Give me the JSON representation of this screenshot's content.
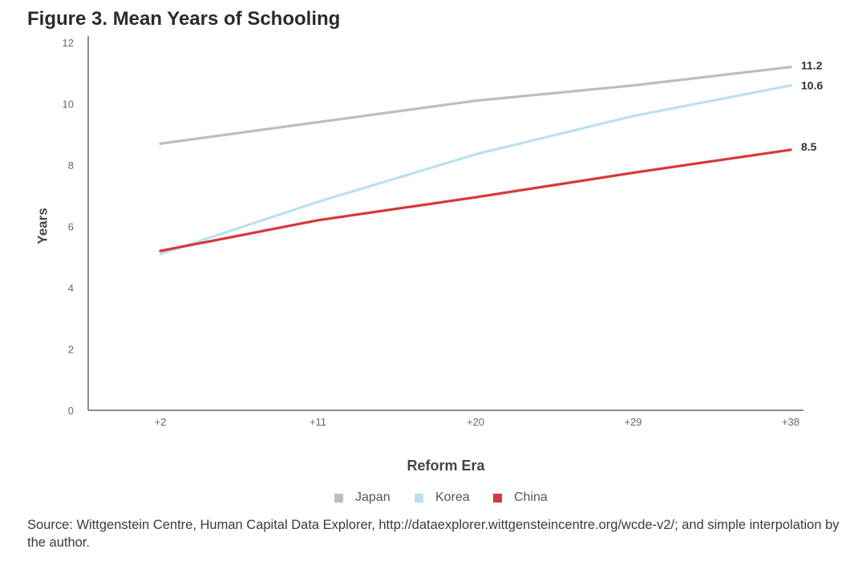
{
  "title": "Figure 3. Mean Years of Schooling",
  "source": "Source: Wittgenstein Centre, Human Capital Data Explorer, http://dataexplorer.wittgensteincentre.org/wcde-v2/; and simple interpolation by the author.",
  "colors": {
    "japan": "#bdbdbd",
    "korea": "#b9e1ee",
    "china": "#d7373b",
    "axis": "#444444",
    "tick_text": "#666666"
  },
  "chart_data": {
    "type": "line",
    "title": "Figure 3. Mean Years of Schooling",
    "xlabel": "Reform Era",
    "ylabel": "Years",
    "categories": [
      "+2",
      "+11",
      "+20",
      "+29",
      "+38"
    ],
    "ylim": [
      0,
      12
    ],
    "yticks": [
      "0",
      "2",
      "4",
      "6",
      "8",
      "10",
      "12"
    ],
    "grid": false,
    "legend_position": "bottom-center",
    "series": [
      {
        "name": "Japan",
        "values": [
          8.7,
          9.4,
          10.1,
          10.6,
          11.2
        ],
        "end_label": "11.2",
        "color": "#bdbdbd"
      },
      {
        "name": "Korea",
        "values": [
          5.1,
          6.8,
          8.35,
          9.6,
          10.6
        ],
        "end_label": "10.6",
        "color": "#b9e1ee"
      },
      {
        "name": "China",
        "values": [
          5.2,
          6.2,
          6.95,
          7.75,
          8.5
        ],
        "end_label": "8.5",
        "color": "#d7373b"
      }
    ]
  },
  "legend": [
    {
      "label": "Japan",
      "color": "#bdbdbd"
    },
    {
      "label": "Korea",
      "color": "#b9e1ee"
    },
    {
      "label": "China",
      "color": "#d7373b"
    }
  ]
}
